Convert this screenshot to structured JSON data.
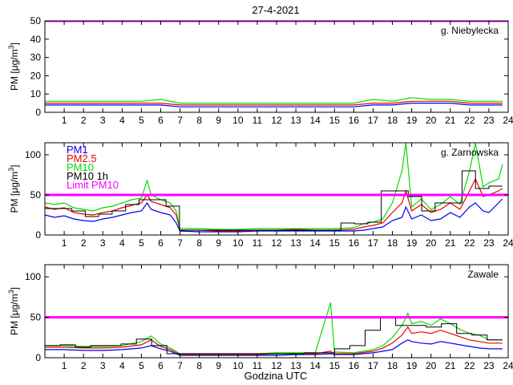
{
  "figure": {
    "title": "27-4-2021",
    "xlabel": "Godzina UTC"
  },
  "colors": {
    "pm1": "#0000ee",
    "pm25": "#ee0000",
    "pm10": "#00dd00",
    "pm10_1h": "#000000",
    "limit": "#ff00ff"
  },
  "legend": [
    "PM1",
    "PM2.5",
    "PM10",
    "PM10 1h",
    "Limit PM10"
  ],
  "chart_data": [
    {
      "type": "line",
      "station": "g. Niebylecka",
      "ylabel": "PM [μg/m3]",
      "xlim": [
        0,
        24
      ],
      "ylim": [
        0,
        50
      ],
      "yticks": [
        0,
        10,
        20,
        30,
        40,
        50
      ],
      "xticks": [
        1,
        2,
        3,
        4,
        5,
        6,
        7,
        8,
        9,
        10,
        11,
        12,
        13,
        14,
        15,
        16,
        17,
        18,
        19,
        20,
        21,
        22,
        23,
        24
      ],
      "limit_pm10": 50,
      "x": [
        0,
        1,
        2,
        3,
        4,
        5,
        6,
        7,
        8,
        9,
        10,
        11,
        12,
        13,
        14,
        15,
        16,
        17,
        18,
        19,
        20,
        21,
        22,
        23,
        23.7
      ],
      "series": [
        {
          "name": "PM1",
          "values": [
            4,
            4,
            4,
            4,
            4,
            4,
            4,
            3,
            3,
            3,
            3,
            3,
            3,
            3,
            3,
            3,
            3,
            4,
            4,
            5,
            5,
            5,
            4,
            4,
            4
          ]
        },
        {
          "name": "PM2.5",
          "values": [
            5,
            5,
            5,
            5,
            5,
            5,
            5,
            4,
            4,
            4,
            4,
            4,
            4,
            4,
            4,
            4,
            4,
            5,
            5,
            6,
            6,
            6,
            5,
            5,
            5
          ]
        },
        {
          "name": "PM10",
          "values": [
            6,
            6,
            6,
            6,
            6,
            6,
            7,
            5,
            5,
            5,
            5,
            5,
            5,
            5,
            5,
            5,
            5,
            7,
            6,
            8,
            7,
            7,
            6,
            6,
            6
          ]
        }
      ],
      "pm10_1h": []
    },
    {
      "type": "line",
      "station": "g. Zarnowska",
      "ylabel": "PM [μg/m3]",
      "xlim": [
        0,
        24
      ],
      "ylim": [
        0,
        115
      ],
      "yticks": [
        0,
        50,
        100
      ],
      "xticks": [
        1,
        2,
        3,
        4,
        5,
        6,
        7,
        8,
        9,
        10,
        11,
        12,
        13,
        14,
        15,
        16,
        17,
        18,
        19,
        20,
        21,
        22,
        23,
        24
      ],
      "limit_pm10": 50,
      "x": [
        0,
        0.5,
        1,
        1.5,
        2,
        2.5,
        3,
        3.5,
        4,
        4.5,
        5,
        5.3,
        5.5,
        6,
        6.5,
        6.8,
        7,
        8,
        9,
        10,
        11,
        12,
        13,
        14,
        15,
        16,
        16.5,
        17,
        17.5,
        18,
        18.5,
        18.7,
        19,
        19.5,
        20,
        20.5,
        21,
        21.5,
        22,
        22.3,
        22.7,
        23,
        23.5,
        23.7
      ],
      "series": [
        {
          "name": "PM1",
          "values": [
            25,
            22,
            24,
            20,
            18,
            17,
            20,
            22,
            25,
            28,
            30,
            40,
            32,
            28,
            25,
            15,
            5,
            4,
            4,
            4,
            5,
            5,
            5,
            5,
            5,
            5,
            6,
            8,
            10,
            18,
            22,
            35,
            20,
            25,
            18,
            20,
            28,
            22,
            35,
            40,
            30,
            28,
            40,
            45
          ]
        },
        {
          "name": "PM2.5",
          "values": [
            35,
            32,
            34,
            28,
            26,
            25,
            28,
            30,
            34,
            37,
            40,
            50,
            42,
            38,
            34,
            25,
            6,
            6,
            5,
            5,
            6,
            6,
            7,
            6,
            6,
            7,
            10,
            12,
            15,
            28,
            40,
            55,
            30,
            38,
            28,
            32,
            40,
            32,
            55,
            70,
            48,
            50,
            55,
            58
          ]
        },
        {
          "name": "PM10",
          "values": [
            40,
            38,
            40,
            34,
            32,
            30,
            34,
            36,
            40,
            44,
            46,
            68,
            50,
            44,
            40,
            30,
            8,
            8,
            7,
            7,
            8,
            8,
            8,
            8,
            8,
            9,
            14,
            16,
            20,
            40,
            80,
            115,
            35,
            45,
            32,
            38,
            48,
            38,
            80,
            115,
            60,
            65,
            70,
            88
          ]
        }
      ],
      "pm10_1h": [
        33,
        33,
        30,
        23,
        26,
        30,
        38,
        44,
        44,
        36,
        6,
        6,
        6,
        6,
        6,
        6,
        6,
        6,
        6,
        6,
        6,
        6,
        15,
        14,
        16,
        55,
        55,
        48,
        30,
        40,
        40,
        80,
        58,
        61
      ]
    },
    {
      "type": "line",
      "station": "Zawale",
      "ylabel": "PM [μg/m3]",
      "xlim": [
        0,
        24
      ],
      "ylim": [
        0,
        115
      ],
      "yticks": [
        0,
        50,
        100
      ],
      "xticks": [
        1,
        2,
        3,
        4,
        5,
        6,
        7,
        8,
        9,
        10,
        11,
        12,
        13,
        14,
        15,
        16,
        17,
        18,
        19,
        20,
        21,
        22,
        23,
        24
      ],
      "limit_pm10": 50,
      "x": [
        0,
        1,
        2,
        3,
        4,
        5,
        5.5,
        6,
        6.5,
        7,
        8,
        9,
        10,
        11,
        12,
        13,
        14,
        14.8,
        15,
        16,
        17,
        17.5,
        18,
        18.5,
        18.8,
        19,
        19.5,
        20,
        20.5,
        21,
        21.5,
        22,
        22.5,
        23,
        23.7
      ],
      "series": [
        {
          "name": "PM1",
          "values": [
            10,
            10,
            9,
            9,
            10,
            12,
            15,
            11,
            8,
            3,
            3,
            3,
            3,
            3,
            3,
            4,
            4,
            5,
            4,
            4,
            6,
            8,
            10,
            18,
            22,
            20,
            18,
            17,
            20,
            18,
            16,
            14,
            12,
            11,
            11
          ]
        },
        {
          "name": "PM2.5",
          "values": [
            13,
            13,
            12,
            12,
            13,
            16,
            22,
            14,
            10,
            4,
            4,
            4,
            4,
            4,
            5,
            5,
            5,
            8,
            5,
            5,
            8,
            12,
            18,
            28,
            38,
            30,
            32,
            30,
            34,
            30,
            26,
            22,
            20,
            18,
            18
          ]
        },
        {
          "name": "PM10",
          "values": [
            15,
            15,
            14,
            14,
            15,
            20,
            27,
            17,
            12,
            5,
            5,
            5,
            5,
            5,
            6,
            6,
            6,
            68,
            7,
            6,
            10,
            15,
            25,
            40,
            55,
            42,
            45,
            40,
            48,
            42,
            35,
            30,
            28,
            22,
            22
          ]
        }
      ],
      "pm10_1h": [
        15,
        16,
        13,
        15,
        15,
        17,
        23,
        15,
        5,
        5,
        5,
        5,
        5,
        5,
        5,
        5,
        5,
        6,
        6,
        11,
        15,
        34,
        50,
        40,
        40,
        38,
        42,
        30,
        28,
        22
      ]
    }
  ]
}
